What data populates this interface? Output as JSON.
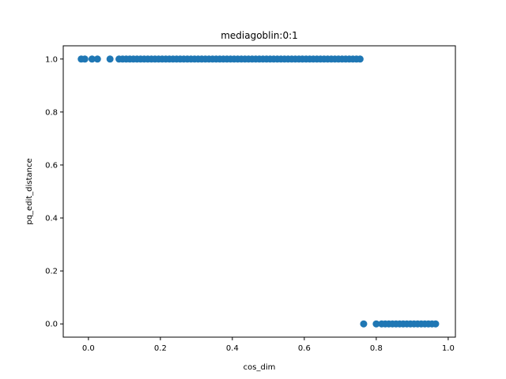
{
  "chart_data": {
    "type": "scatter",
    "title": "mediagoblin:0:1",
    "xlabel": "cos_dim",
    "ylabel": "pq_edit_distance",
    "xlim": [
      -0.07,
      1.02
    ],
    "ylim": [
      -0.05,
      1.05
    ],
    "xticks": [
      0.0,
      0.2,
      0.4,
      0.6,
      0.8,
      1.0
    ],
    "xtick_labels": [
      "0.0",
      "0.2",
      "0.4",
      "0.6",
      "0.8",
      "1.0"
    ],
    "yticks": [
      0.0,
      0.2,
      0.4,
      0.6,
      0.8,
      1.0
    ],
    "ytick_labels": [
      "0.0",
      "0.2",
      "0.4",
      "0.6",
      "0.8",
      "1.0"
    ],
    "grid": false,
    "legend": "none",
    "marker_color": "#1f77b4",
    "series": [
      {
        "x": [
          -0.02,
          -0.01,
          0.01,
          0.025,
          0.06,
          0.085,
          0.095,
          0.105,
          0.115,
          0.125,
          0.135,
          0.145,
          0.155,
          0.165,
          0.175,
          0.185,
          0.195,
          0.205,
          0.215,
          0.225,
          0.235,
          0.245,
          0.255,
          0.265,
          0.275,
          0.285,
          0.295,
          0.305,
          0.315,
          0.325,
          0.335,
          0.345,
          0.355,
          0.365,
          0.375,
          0.385,
          0.395,
          0.405,
          0.415,
          0.425,
          0.435,
          0.445,
          0.455,
          0.465,
          0.475,
          0.485,
          0.495,
          0.505,
          0.515,
          0.525,
          0.535,
          0.545,
          0.555,
          0.565,
          0.575,
          0.585,
          0.595,
          0.605,
          0.615,
          0.625,
          0.635,
          0.645,
          0.655,
          0.665,
          0.675,
          0.685,
          0.695,
          0.705,
          0.715,
          0.725,
          0.735,
          0.745,
          0.755,
          0.765,
          0.8,
          0.815,
          0.825,
          0.835,
          0.845,
          0.855,
          0.865,
          0.875,
          0.885,
          0.895,
          0.905,
          0.915,
          0.925,
          0.935,
          0.945,
          0.955,
          0.965
        ],
        "y": [
          1,
          1,
          1,
          1,
          1,
          1,
          1,
          1,
          1,
          1,
          1,
          1,
          1,
          1,
          1,
          1,
          1,
          1,
          1,
          1,
          1,
          1,
          1,
          1,
          1,
          1,
          1,
          1,
          1,
          1,
          1,
          1,
          1,
          1,
          1,
          1,
          1,
          1,
          1,
          1,
          1,
          1,
          1,
          1,
          1,
          1,
          1,
          1,
          1,
          1,
          1,
          1,
          1,
          1,
          1,
          1,
          1,
          1,
          1,
          1,
          1,
          1,
          1,
          1,
          1,
          1,
          1,
          1,
          1,
          1,
          1,
          1,
          1,
          0,
          0,
          0,
          0,
          0,
          0,
          0,
          0,
          0,
          0,
          0,
          0,
          0,
          0,
          0,
          0,
          0,
          0
        ]
      }
    ]
  }
}
